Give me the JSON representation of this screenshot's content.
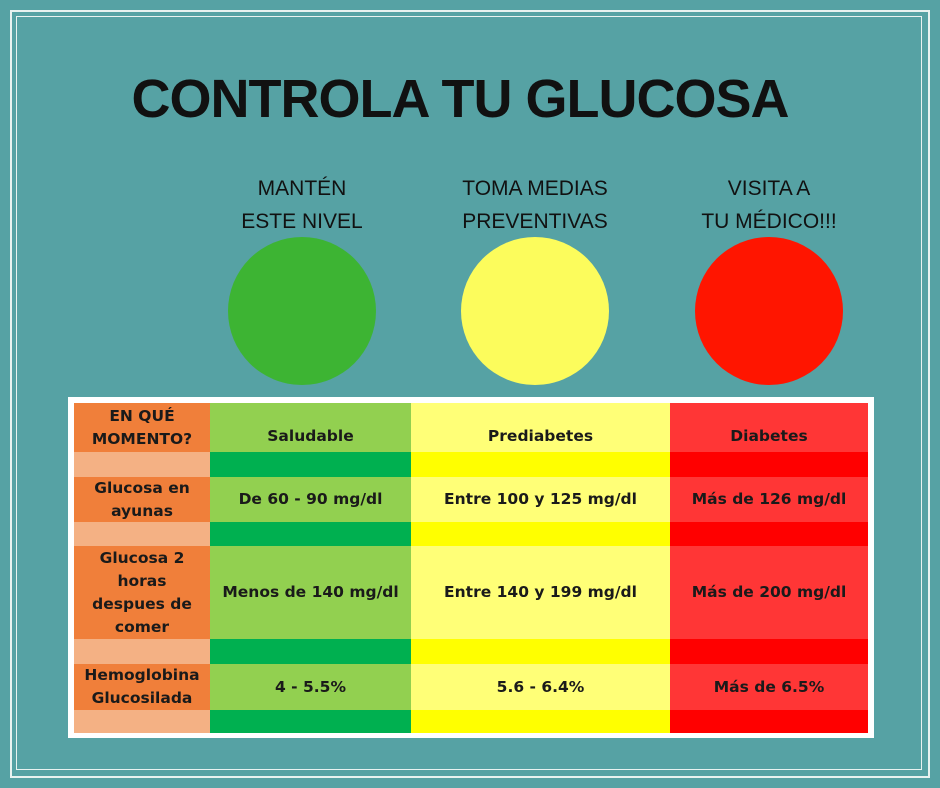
{
  "header": {
    "title": "CONTROLA TU GLUCOSA"
  },
  "levels": [
    {
      "lines": [
        "MANTÉN",
        "ESTE NIVEL"
      ],
      "color": "#3db433"
    },
    {
      "lines": [
        "TOMA MEDIAS",
        "PREVENTIVAS"
      ],
      "color": "#fcfc5c"
    },
    {
      "lines": [
        "VISITA A",
        "TU MÉDICO!!!"
      ],
      "color": "#ff1500"
    }
  ],
  "table": {
    "corner": [
      "EN QUÉ",
      "MOMENTO?"
    ],
    "columns": [
      "Saludable",
      "Prediabetes",
      "Diabetes"
    ],
    "rows": [
      {
        "label": [
          "Glucosa en",
          "ayunas"
        ],
        "cells": [
          "De 60 - 90 mg/dl",
          "Entre 100 y 125 mg/dl",
          "Más de 126 mg/dl"
        ]
      },
      {
        "label": [
          "Glucosa 2",
          "horas",
          "despues de",
          "comer"
        ],
        "cells": [
          "Menos de 140 mg/dl",
          "Entre 140 y 199 mg/dl",
          "Más de 200 mg/dl"
        ]
      },
      {
        "label": [
          "Hemoglobina",
          "Glucosilada"
        ],
        "cells": [
          "4 - 5.5%",
          "5.6 - 6.4%",
          "Más de 6.5%"
        ]
      }
    ]
  }
}
